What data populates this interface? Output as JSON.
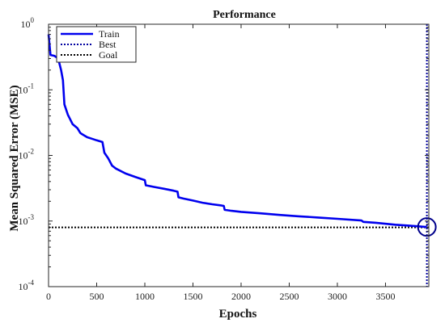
{
  "chart_data": {
    "type": "line",
    "title": "Performance",
    "xlabel": "Epochs",
    "ylabel": "Mean Squared Error  (MSE)",
    "xlim": [
      0,
      3950
    ],
    "ylim": [
      0.0001,
      1
    ],
    "yscale": "log",
    "grid": false,
    "legend_position": "top-left",
    "x_ticks": [
      0,
      500,
      1000,
      1500,
      2000,
      2500,
      3000,
      3500
    ],
    "x_tick_labels": [
      "0",
      "500",
      "1000",
      "1500",
      "2000",
      "2500",
      "3000",
      "3500"
    ],
    "y_ticks": [
      0.0001,
      0.001,
      0.01,
      0.1,
      1
    ],
    "y_tick_labels": [
      {
        "base": "10",
        "exp": "-4"
      },
      {
        "base": "10",
        "exp": "-3"
      },
      {
        "base": "10",
        "exp": "-2"
      },
      {
        "base": "10",
        "exp": "-1"
      },
      {
        "base": "10",
        "exp": "0"
      }
    ],
    "series": [
      {
        "name": "Train",
        "color": "#0000ee",
        "style": "solid",
        "x": [
          0,
          20,
          60,
          100,
          130,
          150,
          165,
          200,
          250,
          300,
          330,
          350,
          400,
          450,
          500,
          560,
          580,
          620,
          660,
          700,
          800,
          900,
          1000,
          1010,
          1100,
          1200,
          1300,
          1340,
          1350,
          1400,
          1500,
          1600,
          1700,
          1800,
          1820,
          1830,
          1900,
          2000,
          2200,
          2400,
          2600,
          2800,
          3000,
          3250,
          3270,
          3400,
          3600,
          3800,
          3930
        ],
        "y": [
          0.7,
          0.34,
          0.33,
          0.3,
          0.2,
          0.14,
          0.06,
          0.042,
          0.03,
          0.026,
          0.022,
          0.021,
          0.019,
          0.018,
          0.017,
          0.016,
          0.011,
          0.009,
          0.007,
          0.0063,
          0.0053,
          0.0047,
          0.0042,
          0.0035,
          0.0033,
          0.0031,
          0.0029,
          0.0028,
          0.0023,
          0.0022,
          0.00205,
          0.0019,
          0.0018,
          0.00172,
          0.0017,
          0.00148,
          0.00143,
          0.00138,
          0.00131,
          0.00124,
          0.00118,
          0.00113,
          0.00108,
          0.00102,
          0.00097,
          0.00094,
          0.00088,
          0.00084,
          0.00081
        ]
      },
      {
        "name": "Best",
        "color": "#0000a0",
        "style": "dotted",
        "x_value": 3930
      },
      {
        "name": "Goal",
        "color": "#000000",
        "style": "dotted",
        "y_value": 0.0008
      }
    ],
    "best_point": {
      "x": 3930,
      "y": 0.00081
    }
  }
}
